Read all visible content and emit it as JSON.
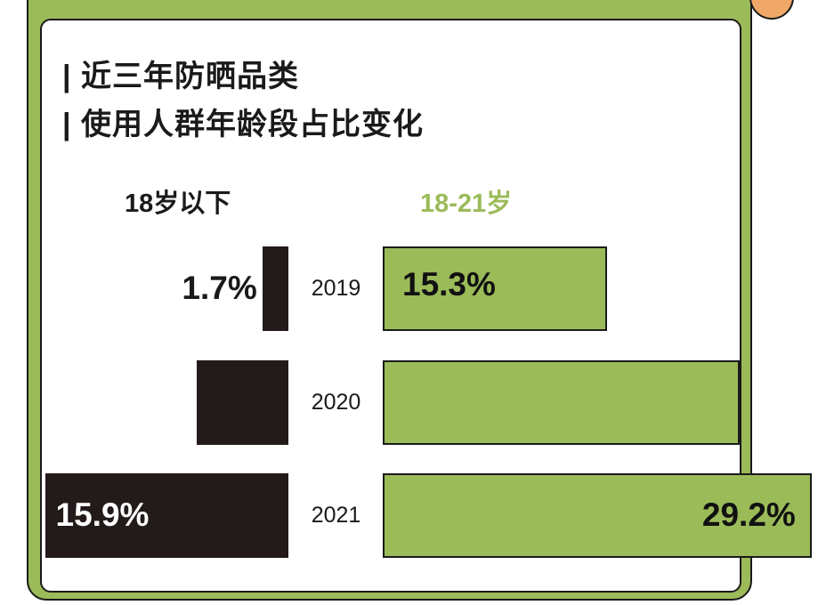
{
  "chart_data": {
    "type": "bar",
    "orientation": "horizontal-butterfly",
    "title_lines": [
      "| 近三年防晒品类",
      "| 使用人群年龄段占比变化"
    ],
    "categories": [
      "2019",
      "2020",
      "2021"
    ],
    "series": [
      {
        "name": "18岁以下",
        "values": [
          1.7,
          6.0,
          15.9
        ],
        "labels": [
          "1.7%",
          "",
          "15.9%"
        ],
        "color": "#231a1a"
      },
      {
        "name": "18-21岁",
        "values": [
          15.3,
          24.3,
          29.2
        ],
        "labels": [
          "15.3%",
          "",
          "29.2%"
        ],
        "color": "#9bbb59"
      }
    ],
    "unit": "%"
  },
  "colors": {
    "frame": "#9bbb59",
    "dark": "#231a1a",
    "accent": "#f0a868"
  }
}
